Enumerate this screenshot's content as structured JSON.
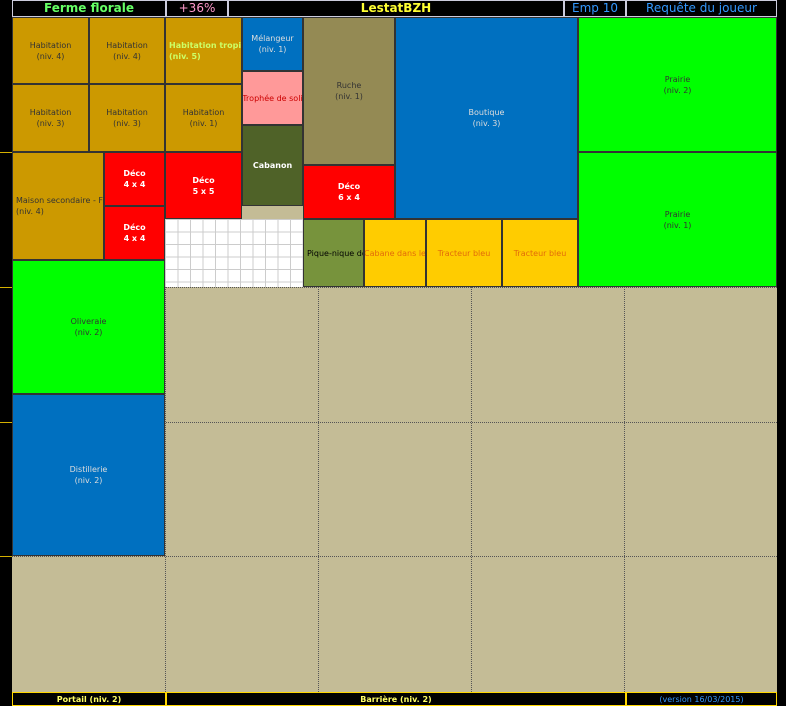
{
  "header": {
    "farm": "Ferme florale",
    "bonus": "+36%",
    "player": "LestatBZH",
    "slot": "Emp 10",
    "request": "Requête du joueur"
  },
  "blocks": [
    {
      "lines": [
        "Habitation",
        "(niv. 4)"
      ]
    },
    {
      "lines": [
        "Habitation",
        "(niv. 4)"
      ]
    },
    {
      "lines": [
        "Habitation tropical",
        "(niv. 5)"
      ]
    },
    {
      "lines": [
        "Habitation",
        "(niv. 3)"
      ]
    },
    {
      "lines": [
        "Habitation",
        "(niv. 3)"
      ]
    },
    {
      "lines": [
        "Habitation",
        "(niv. 1)"
      ]
    },
    {
      "lines": [
        "Mélangeur",
        "(niv. 1)"
      ]
    },
    {
      "lines": [
        "Trophée de soli"
      ]
    },
    {
      "lines": [
        "Cabanon"
      ]
    },
    {
      "lines": [
        "Ruche",
        "(niv. 1)"
      ]
    },
    {
      "lines": [
        "Boutique",
        "(niv. 3)"
      ]
    },
    {
      "lines": [
        "Prairie",
        "(niv. 2)"
      ]
    },
    {
      "lines": [
        "Prairie",
        "(niv. 1)"
      ]
    },
    {
      "lines": [
        "Maison secondaire - F3",
        "(niv. 4)"
      ]
    },
    {
      "lines": [
        "Déco",
        "4 x 4"
      ]
    },
    {
      "lines": [
        "Déco",
        "4 x 4"
      ]
    },
    {
      "lines": [
        "Déco",
        "5 x 5"
      ]
    },
    {
      "lines": [
        "Déco",
        "6 x 4"
      ]
    },
    {
      "lines": [
        "Pique-nique do"
      ]
    },
    {
      "lines": [
        "Cabane dans le"
      ]
    },
    {
      "lines": [
        "Tracteur bleu"
      ]
    },
    {
      "lines": [
        "Tracteur bleu"
      ]
    },
    {
      "lines": [
        "Oliveraie",
        "(niv. 2)"
      ]
    },
    {
      "lines": [
        "Distillerie",
        "(niv. 2)"
      ]
    }
  ],
  "footer": {
    "portal": "Portail (niv. 2)",
    "fence": "Barrière (niv. 2)",
    "version": "(version 16/03/2015)"
  }
}
